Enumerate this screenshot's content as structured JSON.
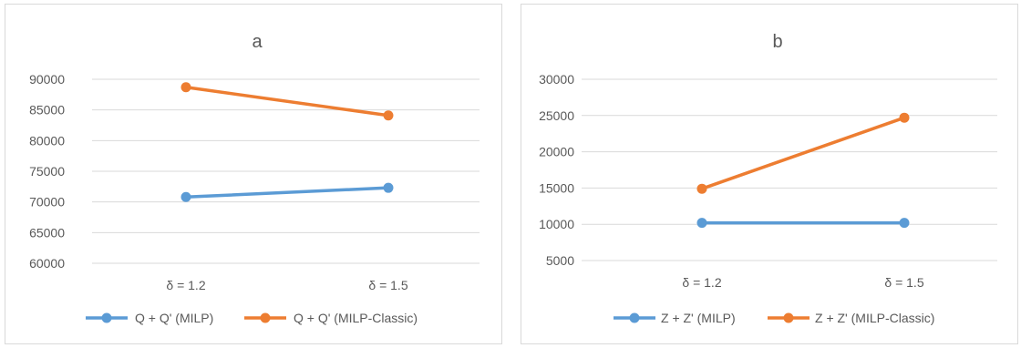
{
  "chart_data": [
    {
      "type": "line",
      "title": "a",
      "categories": [
        "δ = 1.2",
        "δ = 1.5"
      ],
      "yticks": [
        "60000",
        "65000",
        "70000",
        "75000",
        "80000",
        "85000",
        "90000"
      ],
      "ylim": [
        60000,
        90000
      ],
      "grid": true,
      "legend_position": "bottom",
      "series": [
        {
          "name": "Q + Q' (MILP)",
          "values": [
            70800,
            72300
          ],
          "color": "#5b9bd5"
        },
        {
          "name": "Q + Q' (MILP-Classic)",
          "values": [
            88700,
            84100
          ],
          "color": "#ed7d31"
        }
      ]
    },
    {
      "type": "line",
      "title": "b",
      "categories": [
        "δ = 1.2",
        "δ = 1.5"
      ],
      "yticks": [
        "5000",
        "10000",
        "15000",
        "20000",
        "25000",
        "30000"
      ],
      "ylim": [
        5000,
        30000
      ],
      "grid": true,
      "legend_position": "bottom",
      "series": [
        {
          "name": "Z + Z' (MILP)",
          "values": [
            10200,
            10200
          ],
          "color": "#5b9bd5"
        },
        {
          "name": "Z + Z' (MILP-Classic)",
          "values": [
            14900,
            24700
          ],
          "color": "#ed7d31"
        }
      ]
    }
  ]
}
